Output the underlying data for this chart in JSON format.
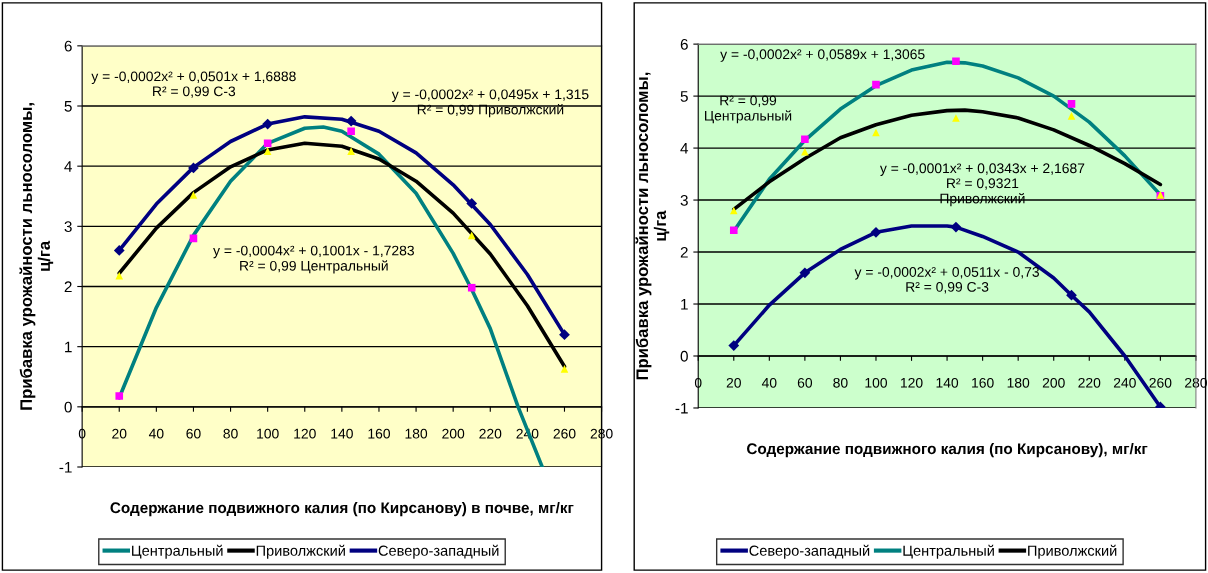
{
  "chart_data": [
    {
      "type": "line",
      "xlabel": "Содержание подвижного калия (по Кирсанову) в почве, мг/кг",
      "ylabel": "Прибавка урожайности льносоломы,\nц/га",
      "xlim": [
        0,
        280
      ],
      "ylim": [
        -1,
        6
      ],
      "xticks": [
        0,
        20,
        40,
        60,
        80,
        100,
        120,
        140,
        160,
        180,
        200,
        220,
        240,
        260,
        280
      ],
      "yticks": [
        -1,
        0,
        1,
        2,
        3,
        4,
        5,
        6
      ],
      "grid": "y",
      "legend": "bottom",
      "series": [
        {
          "name": "Центральный",
          "color": "#008080",
          "marker": "none",
          "x": [
            20,
            40,
            60,
            80,
            100,
            120,
            130,
            140,
            160,
            180,
            200,
            210,
            220,
            235,
            248
          ],
          "values": [
            0.15,
            1.65,
            2.85,
            3.75,
            4.38,
            4.63,
            4.65,
            4.58,
            4.2,
            3.55,
            2.55,
            1.95,
            1.3,
            0.0,
            -1.0
          ]
        },
        {
          "name": "Приволжский",
          "color": "#000000",
          "marker": "none",
          "x": [
            20,
            40,
            60,
            80,
            100,
            120,
            140,
            160,
            180,
            200,
            220,
            240,
            260
          ],
          "values": [
            2.22,
            2.97,
            3.56,
            3.99,
            4.27,
            4.38,
            4.33,
            4.12,
            3.75,
            3.22,
            2.54,
            1.68,
            0.67
          ]
        },
        {
          "name": "Северо-западный",
          "color": "#000080",
          "marker": "none",
          "x": [
            20,
            40,
            60,
            80,
            100,
            120,
            140,
            160,
            180,
            200,
            220,
            240,
            260
          ],
          "values": [
            2.6,
            3.37,
            3.98,
            4.41,
            4.7,
            4.82,
            4.78,
            4.58,
            4.22,
            3.69,
            3.03,
            2.2,
            1.2
          ]
        },
        {
          "type": "scatter",
          "color": "#ff00ff",
          "marker": "square",
          "x": [
            20,
            60,
            100,
            145,
            210
          ],
          "values": [
            0.18,
            2.8,
            4.38,
            4.58,
            1.98
          ]
        },
        {
          "type": "scatter",
          "color": "#ffff00",
          "marker": "triangle",
          "x": [
            20,
            60,
            100,
            145,
            210,
            260
          ],
          "values": [
            2.18,
            3.52,
            4.25,
            4.25,
            2.85,
            0.63
          ]
        },
        {
          "type": "scatter",
          "color": "#000080",
          "marker": "diamond",
          "x": [
            20,
            60,
            100,
            145,
            210,
            260
          ],
          "values": [
            2.6,
            3.97,
            4.7,
            4.75,
            3.38,
            1.2
          ]
        }
      ],
      "annotations": [
        "y = -0,0002x² + 0,0501x + 1,6888\nR² = 0,99 С-3",
        "y = -0,0002x² + 0,0495x + 1,315\nR² = 0,99 Приволжский",
        "y = -0,0004x² + 0,1001x - 1,7283\nR² = 0,99 Центральный"
      ]
    },
    {
      "type": "line",
      "xlabel": "Содержание подвижного калия (по Кирсанову), мг/кг",
      "ylabel": "Прибавка урожайности льносоломы,\nц/га",
      "xlim": [
        0,
        280
      ],
      "ylim": [
        -1,
        6
      ],
      "xticks": [
        0,
        20,
        40,
        60,
        80,
        100,
        120,
        140,
        160,
        180,
        200,
        220,
        240,
        260,
        280
      ],
      "yticks": [
        -1,
        0,
        1,
        2,
        3,
        4,
        5,
        6
      ],
      "grid": "y",
      "legend": "bottom",
      "series": [
        {
          "name": "Северо-западный",
          "color": "#000080",
          "marker": "none",
          "x": [
            20,
            40,
            60,
            80,
            100,
            120,
            140,
            145,
            160,
            180,
            200,
            210,
            220,
            240,
            260
          ],
          "values": [
            0.2,
            0.98,
            1.6,
            2.05,
            2.38,
            2.5,
            2.5,
            2.48,
            2.3,
            2.0,
            1.5,
            1.17,
            0.85,
            0.0,
            -0.98
          ]
        },
        {
          "name": "Центральный",
          "color": "#008080",
          "marker": "none",
          "x": [
            20,
            40,
            60,
            80,
            100,
            120,
            140,
            150,
            160,
            180,
            200,
            220,
            240,
            260
          ],
          "values": [
            2.4,
            3.4,
            4.15,
            4.75,
            5.2,
            5.5,
            5.65,
            5.64,
            5.58,
            5.35,
            5.0,
            4.5,
            3.85,
            3.1
          ]
        },
        {
          "name": "Приволжский",
          "color": "#000000",
          "marker": "none",
          "x": [
            20,
            40,
            60,
            80,
            100,
            120,
            140,
            150,
            160,
            180,
            200,
            220,
            240,
            260
          ],
          "values": [
            2.82,
            3.35,
            3.8,
            4.2,
            4.45,
            4.63,
            4.72,
            4.73,
            4.7,
            4.58,
            4.35,
            4.05,
            3.7,
            3.3
          ]
        },
        {
          "type": "scatter",
          "color": "#ff00ff",
          "marker": "square",
          "x": [
            20,
            60,
            100,
            145,
            210,
            260
          ],
          "values": [
            2.42,
            4.17,
            5.22,
            5.67,
            4.85,
            3.08
          ]
        },
        {
          "type": "scatter",
          "color": "#ffff00",
          "marker": "triangle",
          "x": [
            20,
            60,
            100,
            145,
            210,
            260
          ],
          "values": [
            2.8,
            3.93,
            4.3,
            4.58,
            4.62,
            3.1
          ]
        },
        {
          "type": "scatter",
          "color": "#000080",
          "marker": "diamond",
          "x": [
            20,
            60,
            100,
            145,
            210,
            260
          ],
          "values": [
            0.2,
            1.6,
            2.38,
            2.48,
            1.17,
            -0.98
          ]
        }
      ],
      "annotations": [
        "y = -0,0002x² + 0,0589x + 1,3065",
        "R² = 0,99\nЦентральный",
        "y = -0,0001x² + 0,0343x + 2,1687\nR² = 0,9321\nПриволжский",
        "y = -0,0002x² + 0,0511x - 0,73\nR² = 0,99 С-3"
      ]
    }
  ]
}
